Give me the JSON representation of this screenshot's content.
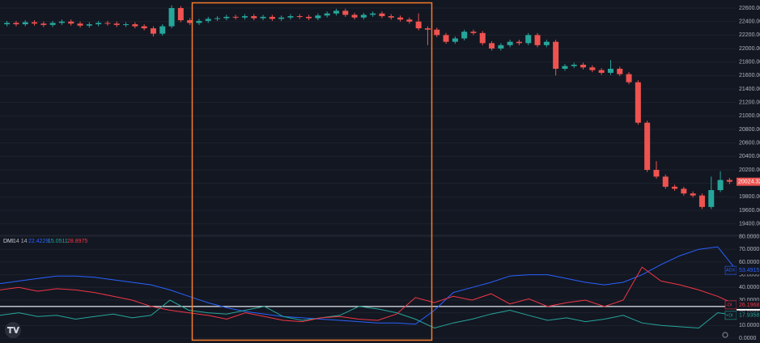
{
  "chart_data": [
    {
      "type": "candlestick",
      "up_color": "#26a69a",
      "down_color": "#ef5350",
      "ylim": [
        19240,
        22720
      ],
      "yticks": [
        {
          "value": 19400,
          "label": "19400.00"
        },
        {
          "value": 19600,
          "label": "19600.00"
        },
        {
          "value": 19800,
          "label": "19800.00"
        },
        {
          "value": 20000,
          "label": "20000.00"
        },
        {
          "value": 20200,
          "label": "20200.00"
        },
        {
          "value": 20400,
          "label": "20400.00"
        },
        {
          "value": 20600,
          "label": "20600.00"
        },
        {
          "value": 20800,
          "label": "20800.00"
        },
        {
          "value": 21000,
          "label": "21000.00"
        },
        {
          "value": 21200,
          "label": "21200.00"
        },
        {
          "value": 21400,
          "label": "21400.00"
        },
        {
          "value": 21600,
          "label": "21600.00"
        },
        {
          "value": 21800,
          "label": "21800.00"
        },
        {
          "value": 22000,
          "label": "22000.00"
        },
        {
          "value": 22200,
          "label": "22200.00"
        },
        {
          "value": 22400,
          "label": "22400.00"
        },
        {
          "value": 22600,
          "label": "22600.00"
        }
      ],
      "grid": true,
      "last_label": "20024.32",
      "open": [
        22360,
        22380,
        22360,
        22390,
        22370,
        22350,
        22380,
        22400,
        22370,
        22340,
        22360,
        22380,
        22370,
        22350,
        22360,
        22330,
        22300,
        22220,
        22330,
        22600,
        22420,
        22380,
        22410,
        22440,
        22450,
        22470,
        22460,
        22480,
        22450,
        22470,
        22440,
        22460,
        22480,
        22470,
        22450,
        22490,
        22520,
        22560,
        22500,
        22460,
        22500,
        22520,
        22480,
        22460,
        22430,
        22400,
        22300,
        22280,
        22200,
        22100,
        22150,
        22250,
        22230,
        22080,
        22000,
        22050,
        22100,
        22080,
        22200,
        22050,
        22100,
        21700,
        21740,
        21760,
        21720,
        21680,
        21640,
        21700,
        21620,
        21500,
        20900,
        20200,
        20100,
        19950,
        19920,
        19850,
        19820,
        19650,
        19900,
        20050
      ],
      "high": [
        22410,
        22410,
        22420,
        22420,
        22400,
        22410,
        22430,
        22430,
        22400,
        22390,
        22410,
        22410,
        22400,
        22390,
        22390,
        22360,
        22330,
        22360,
        22640,
        22630,
        22450,
        22440,
        22470,
        22480,
        22500,
        22500,
        22510,
        22510,
        22500,
        22500,
        22490,
        22510,
        22510,
        22500,
        22520,
        22550,
        22590,
        22590,
        22530,
        22530,
        22550,
        22550,
        22510,
        22490,
        22460,
        22520,
        22330,
        22310,
        22230,
        22180,
        22280,
        22280,
        22260,
        22110,
        22080,
        22130,
        22130,
        22230,
        22230,
        22130,
        22130,
        21770,
        21790,
        21790,
        21750,
        21710,
        21830,
        21730,
        21650,
        21530,
        20930,
        20330,
        20130,
        19980,
        19950,
        19880,
        19850,
        20100,
        20180,
        20080
      ],
      "low": [
        22330,
        22330,
        22330,
        22340,
        22320,
        22320,
        22350,
        22340,
        22310,
        22310,
        22330,
        22340,
        22320,
        22320,
        22300,
        22270,
        22180,
        22190,
        22300,
        22390,
        22350,
        22350,
        22380,
        22410,
        22420,
        22430,
        22430,
        22420,
        22420,
        22410,
        22410,
        22430,
        22440,
        22420,
        22420,
        22460,
        22490,
        22470,
        22430,
        22430,
        22470,
        22450,
        22430,
        22400,
        22370,
        22270,
        22050,
        22170,
        22070,
        22070,
        22120,
        22200,
        22050,
        21970,
        21970,
        22020,
        22050,
        22050,
        22020,
        22020,
        21600,
        21670,
        21710,
        21690,
        21650,
        21610,
        21610,
        21590,
        21470,
        20870,
        20170,
        20070,
        19920,
        19890,
        19820,
        19790,
        19620,
        19620,
        19870,
        19990
      ],
      "close": [
        22380,
        22360,
        22390,
        22370,
        22350,
        22380,
        22400,
        22370,
        22340,
        22360,
        22380,
        22370,
        22350,
        22360,
        22330,
        22300,
        22220,
        22330,
        22600,
        22420,
        22380,
        22410,
        22440,
        22450,
        22470,
        22460,
        22480,
        22450,
        22470,
        22440,
        22460,
        22480,
        22470,
        22450,
        22490,
        22520,
        22560,
        22500,
        22460,
        22500,
        22520,
        22480,
        22460,
        22430,
        22400,
        22300,
        22280,
        22200,
        22100,
        22150,
        22250,
        22230,
        22080,
        22000,
        22050,
        22100,
        22080,
        22200,
        22050,
        22100,
        21700,
        21740,
        21760,
        21720,
        21680,
        21640,
        21700,
        21620,
        21500,
        20900,
        20200,
        20100,
        19950,
        19920,
        19850,
        19820,
        19650,
        19900,
        20050,
        20024.32
      ]
    },
    {
      "type": "line",
      "indicator": "DMI",
      "params": "14 14",
      "legend_values": [
        {
          "text": "22.4229",
          "color": "#2962ff"
        },
        {
          "text": "15.0511",
          "color": "#26a69a"
        },
        {
          "text": "28.8975",
          "color": "#f23645"
        }
      ],
      "ylim": [
        0,
        81
      ],
      "yticks": [
        {
          "value": 0,
          "label": "0.0000"
        },
        {
          "value": 10,
          "label": "10.0000"
        },
        {
          "value": 20,
          "label": "20.0000"
        },
        {
          "value": 30,
          "label": "30.0000"
        },
        {
          "value": 40,
          "label": "40.0000"
        },
        {
          "value": 50,
          "label": "50.0000"
        },
        {
          "value": 60,
          "label": "60.0000"
        },
        {
          "value": 70,
          "label": "70.0000"
        },
        {
          "value": 80,
          "label": "80.0000"
        }
      ],
      "hline": {
        "value": 25,
        "label": "25.0000",
        "color": "#d1d4dc"
      },
      "series": [
        {
          "name": "ADX",
          "color": "#2962ff",
          "last_label": "53.4915",
          "values": [
            43,
            45,
            47,
            49,
            49,
            48,
            46,
            44,
            42,
            38,
            33,
            28,
            24,
            21,
            19,
            17,
            16,
            15,
            14,
            13,
            12,
            12,
            11,
            22,
            36,
            40,
            44,
            49,
            50,
            50,
            47,
            44,
            42,
            44,
            50,
            58,
            65,
            70,
            72,
            53.4915
          ]
        },
        {
          "name": "+DI",
          "color": "#26a69a",
          "last_label": "17.9358",
          "values": [
            18,
            20,
            17,
            18,
            15,
            17,
            19,
            16,
            18,
            30,
            22,
            20,
            19,
            22,
            25,
            17,
            14,
            16,
            18,
            25,
            23,
            20,
            15,
            8,
            12,
            15,
            19,
            22,
            18,
            14,
            16,
            13,
            15,
            18,
            12,
            10,
            9,
            8,
            20,
            17.9358
          ]
        },
        {
          "name": "-DI",
          "color": "#f23645",
          "last_label": "26.1968",
          "values": [
            38,
            40,
            37,
            39,
            38,
            36,
            33,
            30,
            25,
            22,
            20,
            18,
            15,
            20,
            17,
            14,
            13,
            16,
            17,
            15,
            14,
            19,
            32,
            28,
            33,
            30,
            35,
            27,
            31,
            25,
            28,
            30,
            25,
            30,
            56,
            45,
            42,
            38,
            33,
            26.1968
          ]
        }
      ]
    }
  ]
}
